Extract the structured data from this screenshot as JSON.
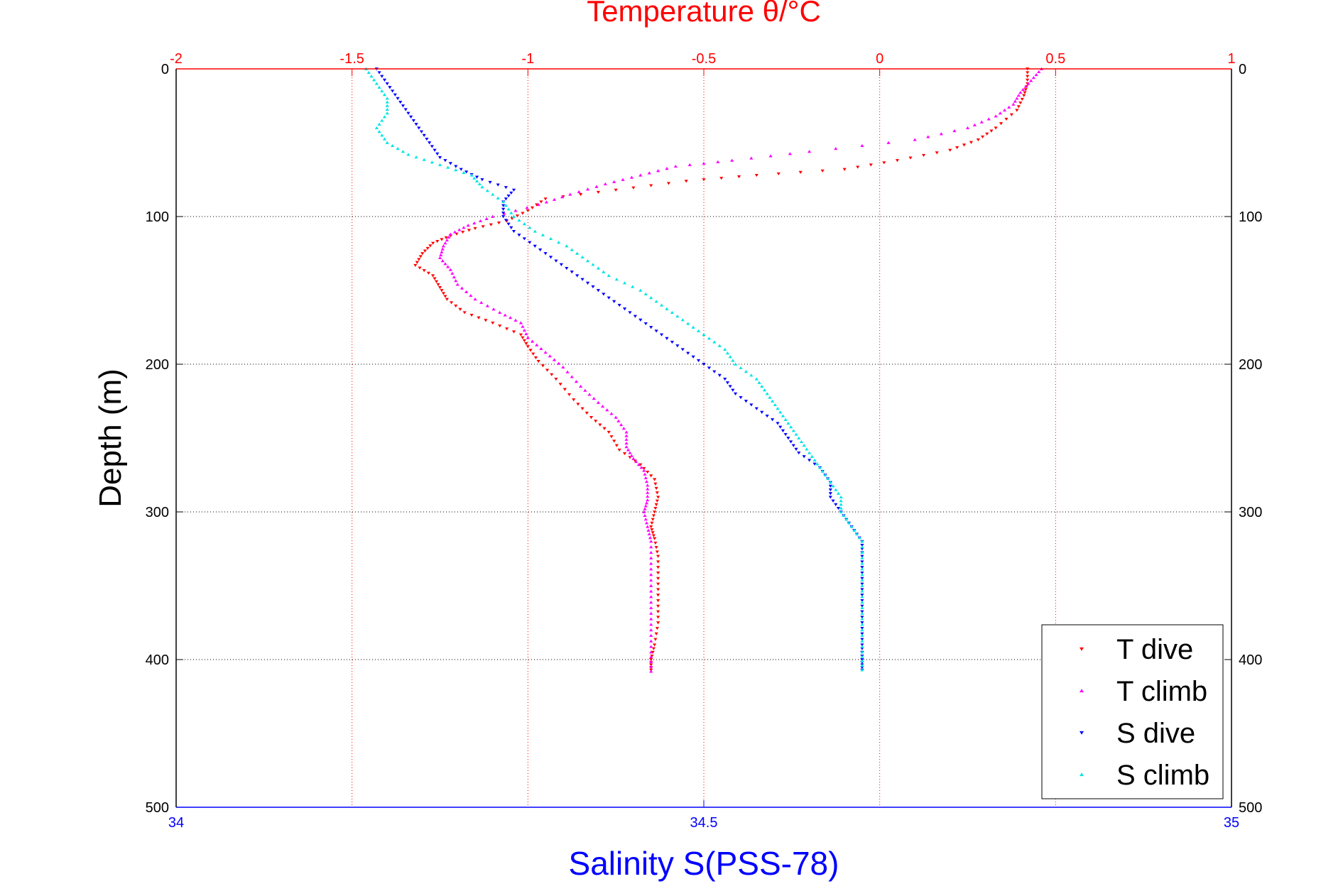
{
  "chart_data": {
    "type": "scatter",
    "title": "Temperature θ/°C",
    "xlabel": "Salinity S(PSS-78)",
    "ylabel": "Depth (m)",
    "top_axis": {
      "label": "Temperature θ/°C",
      "range": [
        -2,
        1
      ],
      "ticks": [
        "-2",
        "-1.5",
        "-1",
        "-0.5",
        "0",
        "0.5",
        "1"
      ],
      "tick_values": [
        -2,
        -1.5,
        -1,
        -0.5,
        0,
        0.5,
        1
      ],
      "color": "#ff0000"
    },
    "bottom_axis": {
      "label": "Salinity S(PSS-78)",
      "range": [
        34,
        35
      ],
      "ticks": [
        "34",
        "34.5",
        "35"
      ],
      "tick_values": [
        34,
        34.5,
        35
      ],
      "color": "#0000ff"
    },
    "y_axis": {
      "label": "Depth (m)",
      "range": [
        0,
        500
      ],
      "reversed": true,
      "ticks": [
        "0",
        "100",
        "200",
        "300",
        "400",
        "500"
      ],
      "tick_values": [
        0,
        100,
        200,
        300,
        400,
        500
      ]
    },
    "grid": true,
    "legend_position": "bottom-right",
    "series": [
      {
        "name": "T dive",
        "axis": "top",
        "color": "#ff0000",
        "marker": "triangle-down",
        "points": [
          [
            0.42,
            0
          ],
          [
            0.42,
            10
          ],
          [
            0.41,
            18
          ],
          [
            0.39,
            28
          ],
          [
            0.33,
            40
          ],
          [
            0.28,
            48
          ],
          [
            0.2,
            55
          ],
          [
            0.05,
            62
          ],
          [
            -0.1,
            68
          ],
          [
            -0.35,
            72
          ],
          [
            -0.55,
            76
          ],
          [
            -0.75,
            82
          ],
          [
            -0.95,
            88
          ],
          [
            -1.0,
            96
          ],
          [
            -1.06,
            103
          ],
          [
            -1.15,
            108
          ],
          [
            -1.22,
            113
          ],
          [
            -1.27,
            118
          ],
          [
            -1.3,
            125
          ],
          [
            -1.32,
            133
          ],
          [
            -1.27,
            140
          ],
          [
            -1.25,
            148
          ],
          [
            -1.23,
            156
          ],
          [
            -1.18,
            165
          ],
          [
            -1.1,
            172
          ],
          [
            -1.02,
            180
          ],
          [
            -1.0,
            188
          ],
          [
            -0.97,
            198
          ],
          [
            -0.92,
            210
          ],
          [
            -0.87,
            224
          ],
          [
            -0.82,
            236
          ],
          [
            -0.77,
            246
          ],
          [
            -0.74,
            258
          ],
          [
            -0.68,
            268
          ],
          [
            -0.64,
            278
          ],
          [
            -0.63,
            290
          ],
          [
            -0.64,
            300
          ],
          [
            -0.65,
            310
          ],
          [
            -0.64,
            318
          ],
          [
            -0.63,
            330
          ],
          [
            -0.63,
            345
          ],
          [
            -0.63,
            360
          ],
          [
            -0.63,
            375
          ],
          [
            -0.64,
            390
          ],
          [
            -0.65,
            400
          ],
          [
            -0.65,
            407
          ]
        ]
      },
      {
        "name": "T climb",
        "axis": "top",
        "color": "#ff00ff",
        "marker": "triangle-up",
        "points": [
          [
            0.46,
            0
          ],
          [
            0.43,
            8
          ],
          [
            0.4,
            16
          ],
          [
            0.38,
            24
          ],
          [
            0.33,
            32
          ],
          [
            0.25,
            40
          ],
          [
            0.1,
            48
          ],
          [
            -0.2,
            56
          ],
          [
            -0.42,
            62
          ],
          [
            -0.58,
            66
          ],
          [
            -0.68,
            72
          ],
          [
            -0.78,
            78
          ],
          [
            -0.88,
            85
          ],
          [
            -0.97,
            92
          ],
          [
            -1.1,
            100
          ],
          [
            -1.17,
            106
          ],
          [
            -1.22,
            112
          ],
          [
            -1.24,
            120
          ],
          [
            -1.25,
            128
          ],
          [
            -1.22,
            136
          ],
          [
            -1.2,
            146
          ],
          [
            -1.15,
            156
          ],
          [
            -1.08,
            165
          ],
          [
            -1.02,
            172
          ],
          [
            -1.0,
            182
          ],
          [
            -0.95,
            192
          ],
          [
            -0.9,
            202
          ],
          [
            -0.85,
            215
          ],
          [
            -0.8,
            226
          ],
          [
            -0.75,
            236
          ],
          [
            -0.72,
            246
          ],
          [
            -0.72,
            256
          ],
          [
            -0.7,
            264
          ],
          [
            -0.67,
            272
          ],
          [
            -0.66,
            282
          ],
          [
            -0.66,
            292
          ],
          [
            -0.67,
            300
          ],
          [
            -0.66,
            310
          ],
          [
            -0.65,
            320
          ],
          [
            -0.65,
            335
          ],
          [
            -0.65,
            350
          ],
          [
            -0.65,
            365
          ],
          [
            -0.65,
            380
          ],
          [
            -0.65,
            395
          ],
          [
            -0.65,
            408
          ]
        ]
      },
      {
        "name": "S dive",
        "axis": "bottom",
        "color": "#0000ff",
        "marker": "triangle-down",
        "points": [
          [
            34.19,
            0
          ],
          [
            34.2,
            10
          ],
          [
            34.21,
            20
          ],
          [
            34.22,
            30
          ],
          [
            34.23,
            40
          ],
          [
            34.24,
            50
          ],
          [
            34.25,
            60
          ],
          [
            34.27,
            68
          ],
          [
            34.29,
            75
          ],
          [
            34.32,
            82
          ],
          [
            34.31,
            90
          ],
          [
            34.31,
            100
          ],
          [
            34.32,
            110
          ],
          [
            34.34,
            120
          ],
          [
            34.36,
            130
          ],
          [
            34.38,
            140
          ],
          [
            34.4,
            150
          ],
          [
            34.42,
            160
          ],
          [
            34.44,
            170
          ],
          [
            34.46,
            180
          ],
          [
            34.48,
            190
          ],
          [
            34.5,
            200
          ],
          [
            34.52,
            210
          ],
          [
            34.53,
            220
          ],
          [
            34.55,
            230
          ],
          [
            34.57,
            240
          ],
          [
            34.58,
            250
          ],
          [
            34.59,
            260
          ],
          [
            34.61,
            270
          ],
          [
            34.62,
            280
          ],
          [
            34.62,
            290
          ],
          [
            34.63,
            300
          ],
          [
            34.64,
            310
          ],
          [
            34.65,
            320
          ],
          [
            34.65,
            330
          ],
          [
            34.65,
            345
          ],
          [
            34.65,
            360
          ],
          [
            34.65,
            375
          ],
          [
            34.65,
            390
          ],
          [
            34.65,
            400
          ],
          [
            34.65,
            407
          ]
        ]
      },
      {
        "name": "S climb",
        "axis": "bottom",
        "color": "#00e5e5",
        "marker": "triangle-up",
        "points": [
          [
            34.18,
            0
          ],
          [
            34.19,
            10
          ],
          [
            34.2,
            20
          ],
          [
            34.2,
            30
          ],
          [
            34.19,
            40
          ],
          [
            34.2,
            50
          ],
          [
            34.22,
            58
          ],
          [
            34.25,
            65
          ],
          [
            34.28,
            72
          ],
          [
            34.29,
            80
          ],
          [
            34.31,
            90
          ],
          [
            34.32,
            100
          ],
          [
            34.34,
            110
          ],
          [
            34.37,
            120
          ],
          [
            34.39,
            130
          ],
          [
            34.41,
            140
          ],
          [
            34.44,
            150
          ],
          [
            34.46,
            160
          ],
          [
            34.48,
            170
          ],
          [
            34.5,
            180
          ],
          [
            34.52,
            190
          ],
          [
            34.53,
            200
          ],
          [
            34.55,
            210
          ],
          [
            34.56,
            220
          ],
          [
            34.57,
            230
          ],
          [
            34.58,
            240
          ],
          [
            34.59,
            250
          ],
          [
            34.6,
            260
          ],
          [
            34.61,
            270
          ],
          [
            34.62,
            280
          ],
          [
            34.63,
            290
          ],
          [
            34.63,
            300
          ],
          [
            34.64,
            310
          ],
          [
            34.65,
            320
          ],
          [
            34.65,
            335
          ],
          [
            34.65,
            350
          ],
          [
            34.65,
            365
          ],
          [
            34.65,
            380
          ],
          [
            34.65,
            395
          ],
          [
            34.65,
            407
          ]
        ]
      }
    ]
  }
}
